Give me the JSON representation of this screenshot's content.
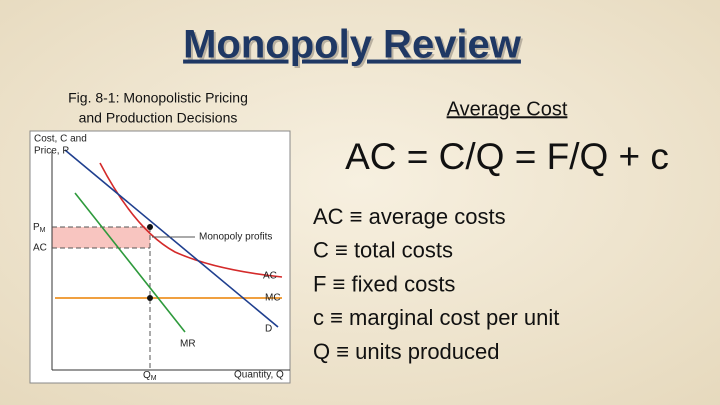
{
  "header": {
    "title": "Monopoly Review"
  },
  "figure": {
    "caption": [
      "Fig. 8-1: Monopolistic Pricing",
      "and Production Decisions"
    ],
    "y_axis_label": [
      "Cost, C and",
      "Price, P"
    ],
    "x_axis_label": "Quantity, Q",
    "price_label": {
      "text": "P",
      "sub": "M"
    },
    "cost_label": "AC",
    "quantity_label": {
      "text": "Q",
      "sub": "M"
    },
    "profit_label": "Monopoly profits",
    "curves": [
      "AC",
      "MC",
      "D",
      "MR"
    ]
  },
  "content": {
    "heading": "Average Cost",
    "formula": "AC = C/Q = F/Q + c",
    "definitions": [
      "AC ≡ average costs",
      "C ≡ total costs",
      "F ≡ fixed costs",
      "c ≡ marginal cost per unit",
      "Q ≡ units produced"
    ]
  }
}
